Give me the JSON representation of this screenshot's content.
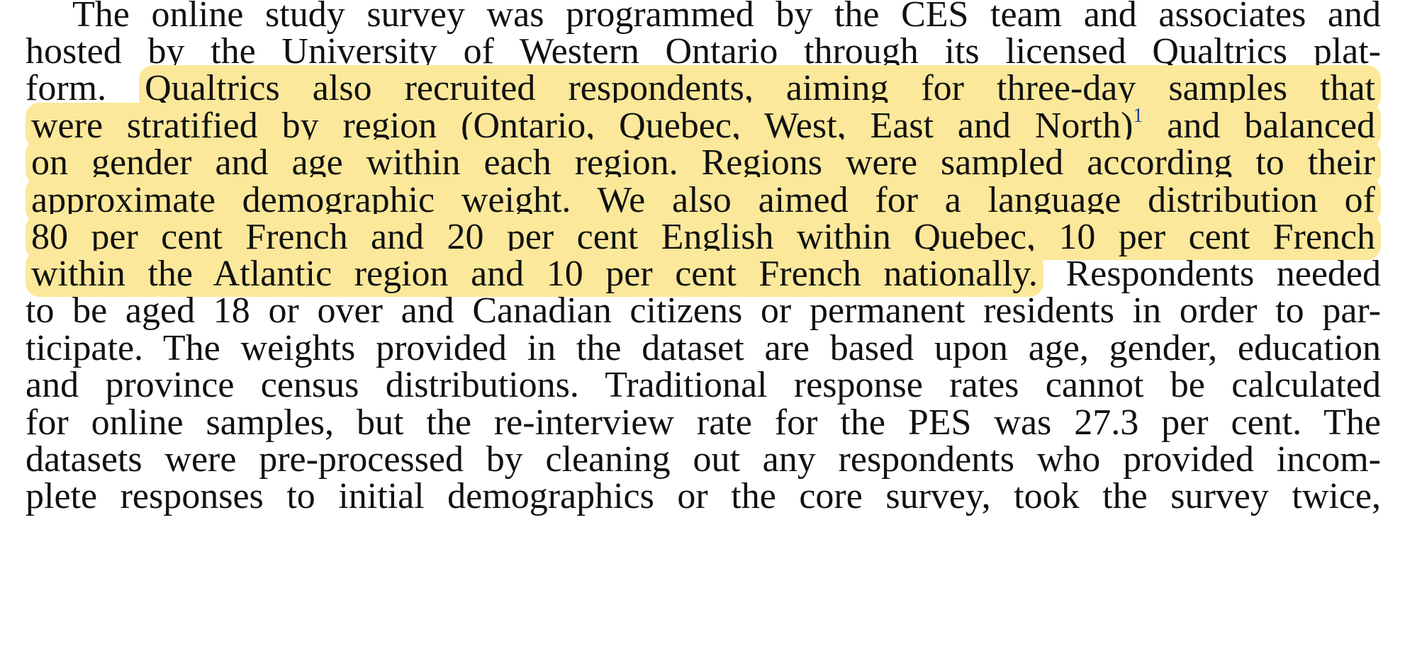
{
  "paragraph": {
    "lines": [
      {
        "plain_pre": "The online study survey was programmed by the CES team and associates and",
        "highlight": "",
        "superscript": "",
        "highlight_post": "",
        "plain_post": ""
      },
      {
        "plain_pre": "hosted by the University of Western Ontario through its licensed Qualtrics plat-",
        "highlight": "",
        "superscript": "",
        "highlight_post": "",
        "plain_post": ""
      },
      {
        "plain_pre": "form. ",
        "highlight": "Qualtrics also recruited respondents, aiming for three-day samples that",
        "superscript": "",
        "highlight_post": "",
        "plain_post": ""
      },
      {
        "plain_pre": "",
        "highlight": "were stratified by region (Ontario, Quebec, West, East and North)",
        "superscript": "1",
        "highlight_post": " and balanced",
        "plain_post": ""
      },
      {
        "plain_pre": "",
        "highlight": "on gender and age within each region. Regions were sampled according to their",
        "superscript": "",
        "highlight_post": "",
        "plain_post": ""
      },
      {
        "plain_pre": "",
        "highlight": "approximate demographic weight. We also aimed for a language distribution of",
        "superscript": "",
        "highlight_post": "",
        "plain_post": ""
      },
      {
        "plain_pre": "",
        "highlight": "80 per cent French and 20 per cent English within Quebec, 10 per cent French",
        "superscript": "",
        "highlight_post": "",
        "plain_post": ""
      },
      {
        "plain_pre": "",
        "highlight": "within the Atlantic region and 10 per cent French nationally.",
        "superscript": "",
        "highlight_post": "",
        "plain_post": " Respondents needed"
      },
      {
        "plain_pre": "to be aged 18 or over and Canadian citizens or permanent residents in order to par-",
        "highlight": "",
        "superscript": "",
        "highlight_post": "",
        "plain_post": ""
      },
      {
        "plain_pre": "ticipate. The weights provided in the dataset are based upon age, gender, education",
        "highlight": "",
        "superscript": "",
        "highlight_post": "",
        "plain_post": ""
      },
      {
        "plain_pre": "and province census distributions. Traditional response rates cannot be calculated",
        "highlight": "",
        "superscript": "",
        "highlight_post": "",
        "plain_post": ""
      },
      {
        "plain_pre": "for online samples, but the re-interview rate for the PES was 27.3 per cent. The",
        "highlight": "",
        "superscript": "",
        "highlight_post": "",
        "plain_post": ""
      },
      {
        "plain_pre": "datasets were pre-processed by cleaning out any respondents who provided incom-",
        "highlight": "",
        "superscript": "",
        "highlight_post": "",
        "plain_post": ""
      },
      {
        "plain_pre": "plete responses to initial demographics or the core survey, took the survey twice,",
        "highlight": "",
        "superscript": "",
        "highlight_post": "",
        "plain_post": ""
      }
    ]
  },
  "colors": {
    "highlight": "#fbe89a",
    "text": "#111111",
    "footnote_link": "#1a3fa6"
  }
}
